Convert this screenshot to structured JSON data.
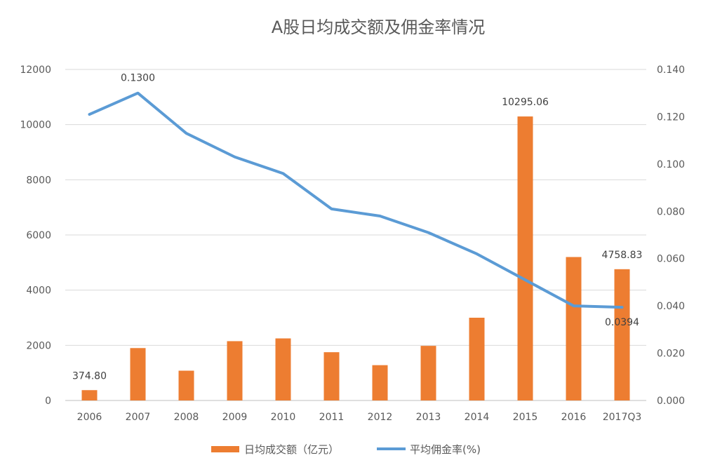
{
  "chart_data": {
    "type": "bar+line",
    "title": "A股日均成交额及佣金率情况",
    "categories": [
      "2006",
      "2007",
      "2008",
      "2009",
      "2010",
      "2011",
      "2012",
      "2013",
      "2014",
      "2015",
      "2016",
      "2017Q3"
    ],
    "series": [
      {
        "name": "日均成交额（亿元）",
        "type": "bar",
        "axis": "left",
        "color": "#ED7D31",
        "values": [
          374.8,
          1900,
          1080,
          2150,
          2250,
          1750,
          1280,
          1980,
          3000,
          10295.06,
          5200,
          4758.83
        ]
      },
      {
        "name": "平均佣金率(%)",
        "type": "line",
        "axis": "right",
        "color": "#5B9BD5",
        "values": [
          0.121,
          0.13,
          0.113,
          0.103,
          0.096,
          0.081,
          0.078,
          0.071,
          0.062,
          0.051,
          0.04,
          0.0394
        ]
      }
    ],
    "left_axis": {
      "min": 0,
      "max": 12000,
      "step": 2000,
      "tick_labels": [
        "0",
        "2000",
        "4000",
        "6000",
        "8000",
        "10000",
        "12000"
      ]
    },
    "right_axis": {
      "min": 0,
      "max": 0.14,
      "step": 0.02,
      "tick_labels": [
        "0.000",
        "0.020",
        "0.040",
        "0.060",
        "0.080",
        "0.100",
        "0.120",
        "0.140"
      ]
    },
    "data_labels": [
      {
        "series": 0,
        "index": 0,
        "text": "374.80"
      },
      {
        "series": 0,
        "index": 9,
        "text": "10295.06"
      },
      {
        "series": 0,
        "index": 11,
        "text": "4758.83"
      },
      {
        "series": 1,
        "index": 1,
        "text": "0.1300"
      },
      {
        "series": 1,
        "index": 11,
        "text": "0.0394"
      }
    ],
    "grid": true,
    "legend": "bottom"
  }
}
